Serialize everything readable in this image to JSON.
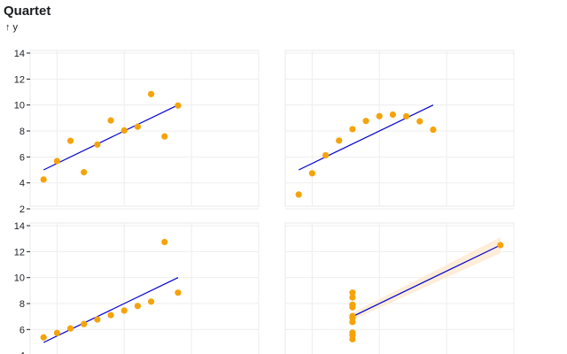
{
  "chart_data": {
    "title": "Quartet",
    "ylabel": "↑ y",
    "type": "scatter",
    "layout": "2x2 facets, y axis shared per row",
    "xlim": [
      3,
      20
    ],
    "rows": [
      {
        "ylim": [
          2,
          14
        ],
        "yticks": [
          "2",
          "4",
          "6",
          "8",
          "10",
          "12",
          "14"
        ]
      },
      {
        "ylim": [
          4,
          14
        ],
        "yticks": [
          "4",
          "6",
          "8",
          "10",
          "12",
          "14"
        ]
      }
    ],
    "grid": true,
    "point_color": "#f5a30a",
    "fit_color": "#0000d4",
    "band_color": "#fde9cf",
    "panels": [
      {
        "row": 0,
        "col": 0,
        "points": [
          {
            "x": 4,
            "y": 4.26
          },
          {
            "x": 5,
            "y": 5.68
          },
          {
            "x": 6,
            "y": 7.24
          },
          {
            "x": 7,
            "y": 4.82
          },
          {
            "x": 8,
            "y": 6.95
          },
          {
            "x": 9,
            "y": 8.81
          },
          {
            "x": 10,
            "y": 8.04
          },
          {
            "x": 11,
            "y": 8.33
          },
          {
            "x": 12,
            "y": 10.84
          },
          {
            "x": 13,
            "y": 7.58
          },
          {
            "x": 14,
            "y": 9.96
          }
        ],
        "fit": {
          "x": [
            4,
            14
          ],
          "y": [
            5.0,
            10.0
          ]
        }
      },
      {
        "row": 0,
        "col": 1,
        "points": [
          {
            "x": 4,
            "y": 3.1
          },
          {
            "x": 5,
            "y": 4.74
          },
          {
            "x": 6,
            "y": 6.13
          },
          {
            "x": 7,
            "y": 7.26
          },
          {
            "x": 8,
            "y": 8.14
          },
          {
            "x": 9,
            "y": 8.77
          },
          {
            "x": 10,
            "y": 9.14
          },
          {
            "x": 11,
            "y": 9.26
          },
          {
            "x": 12,
            "y": 9.13
          },
          {
            "x": 13,
            "y": 8.74
          },
          {
            "x": 14,
            "y": 8.1
          }
        ],
        "fit": {
          "x": [
            4,
            14
          ],
          "y": [
            5.0,
            10.0
          ]
        }
      },
      {
        "row": 1,
        "col": 0,
        "points": [
          {
            "x": 4,
            "y": 5.39
          },
          {
            "x": 5,
            "y": 5.73
          },
          {
            "x": 6,
            "y": 6.08
          },
          {
            "x": 7,
            "y": 6.42
          },
          {
            "x": 8,
            "y": 6.77
          },
          {
            "x": 9,
            "y": 7.11
          },
          {
            "x": 10,
            "y": 7.46
          },
          {
            "x": 11,
            "y": 7.81
          },
          {
            "x": 12,
            "y": 8.15
          },
          {
            "x": 13,
            "y": 12.74
          },
          {
            "x": 14,
            "y": 8.84
          }
        ],
        "fit": {
          "x": [
            4,
            14
          ],
          "y": [
            5.0,
            10.0
          ]
        }
      },
      {
        "row": 1,
        "col": 1,
        "points": [
          {
            "x": 8,
            "y": 5.25
          },
          {
            "x": 8,
            "y": 5.56
          },
          {
            "x": 8,
            "y": 5.76
          },
          {
            "x": 8,
            "y": 6.58
          },
          {
            "x": 8,
            "y": 6.89
          },
          {
            "x": 8,
            "y": 7.04
          },
          {
            "x": 8,
            "y": 7.71
          },
          {
            "x": 8,
            "y": 7.91
          },
          {
            "x": 8,
            "y": 8.47
          },
          {
            "x": 8,
            "y": 8.84
          },
          {
            "x": 19,
            "y": 12.5
          }
        ],
        "fit": {
          "x": [
            8,
            19
          ],
          "y": [
            7.0,
            12.5
          ]
        },
        "band": true
      }
    ]
  }
}
